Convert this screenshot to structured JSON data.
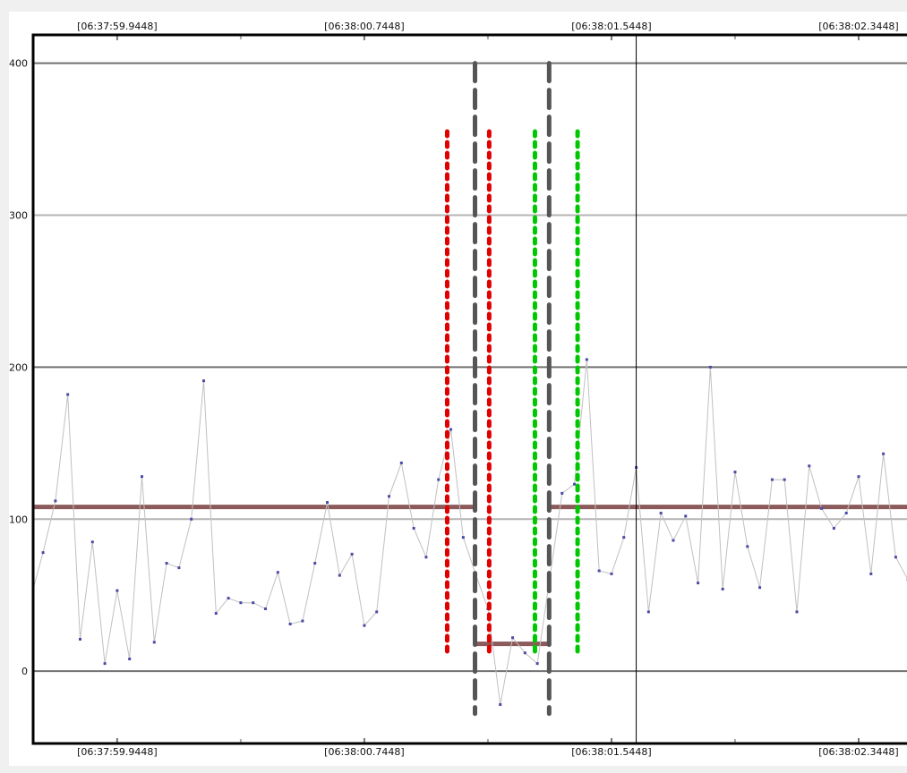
{
  "chart_data": {
    "type": "line",
    "title": "",
    "xlabel": "",
    "ylabel": "",
    "ylim": [
      -47,
      418
    ],
    "xlim": [
      "06:37:59.6756",
      "06:38:02.5013"
    ],
    "yticks": [
      0,
      100,
      200,
      300,
      400
    ],
    "ytick_labels": [
      "0",
      "100",
      "200",
      "300",
      "400"
    ],
    "xticks_major": [
      "06:37:59.9448",
      "06:38:00.7448",
      "06:38:01.5448",
      "06:38:02.3448"
    ],
    "xtick_labels": [
      "[06:37:59.9448]",
      "[06:38:00.7448]",
      "[06:38:01.5448]",
      "[06:38:02.3448]"
    ],
    "xticks_minor": [
      "06:38:00.3448",
      "06:38:01.1448",
      "06:38:01.9448"
    ],
    "grid": true,
    "colors": {
      "series_line": "#c0c0c0",
      "points": "#4a4aa8",
      "level": "#8c5a5a",
      "range_marker": "#555555",
      "red_marker": "#e00000",
      "green_marker": "#00c800",
      "cursor": "#000000",
      "grid_dark": "#707070",
      "grid_light": "#b4b4b4"
    },
    "series": [
      {
        "x": [
          "06:37:59.6648",
          "06:37:59.7048",
          "06:37:59.7448",
          "06:37:59.7848",
          "06:37:59.8248",
          "06:37:59.8648",
          "06:37:59.9048",
          "06:37:59.9448",
          "06:37:59.9848",
          "06:38:00.0248",
          "06:38:00.0648",
          "06:38:00.1048",
          "06:38:00.1448",
          "06:38:00.1848",
          "06:38:00.2248",
          "06:38:00.2648",
          "06:38:00.3048",
          "06:38:00.3448",
          "06:38:00.3848",
          "06:38:00.4248",
          "06:38:00.4648",
          "06:38:00.5048",
          "06:38:00.5448",
          "06:38:00.5848",
          "06:38:00.6248",
          "06:38:00.6648",
          "06:38:00.7048",
          "06:38:00.7448",
          "06:38:00.7848",
          "06:38:00.8248",
          "06:38:00.8648",
          "06:38:00.9048",
          "06:38:00.9448",
          "06:38:00.9848",
          "06:38:01.0248",
          "06:38:01.0648",
          "06:38:01.1048",
          "06:38:01.1448",
          "06:38:01.1848",
          "06:38:01.2248",
          "06:38:01.2648",
          "06:38:01.3048",
          "06:38:01.3448",
          "06:38:01.3848",
          "06:38:01.4248",
          "06:38:01.4648",
          "06:38:01.5048",
          "06:38:01.5448",
          "06:38:01.5848",
          "06:38:01.6248",
          "06:38:01.6648",
          "06:38:01.7048",
          "06:38:01.7448",
          "06:38:01.7848",
          "06:38:01.8248",
          "06:38:01.8648",
          "06:38:01.9048",
          "06:38:01.9448",
          "06:38:01.9848",
          "06:38:02.0248",
          "06:38:02.0648",
          "06:38:02.1048",
          "06:38:02.1448",
          "06:38:02.1848",
          "06:38:02.2248",
          "06:38:02.2648",
          "06:38:02.3048",
          "06:38:02.3448",
          "06:38:02.3848",
          "06:38:02.4248",
          "06:38:02.4648",
          "06:38:02.5048"
        ],
        "y": [
          48,
          78,
          112,
          182,
          21,
          85,
          5,
          53,
          8,
          128,
          19,
          71,
          68,
          100,
          191,
          38,
          48,
          45,
          45,
          41,
          65,
          31,
          33,
          71,
          111,
          63,
          77,
          30,
          39,
          115,
          137,
          94,
          75,
          126,
          159,
          88,
          64,
          41,
          -22,
          22,
          12,
          5,
          61,
          117,
          123,
          205,
          66,
          64,
          88,
          134,
          39,
          104,
          86,
          102,
          58,
          200,
          54,
          131,
          82,
          55,
          126,
          126,
          39,
          135,
          107,
          94,
          104,
          128,
          64,
          143,
          75,
          60
        ]
      }
    ],
    "level_segments": [
      {
        "x0": "06:37:59.6756",
        "x1": "06:38:01.1030",
        "y": 108
      },
      {
        "x0": "06:38:01.1030",
        "x1": "06:38:01.3430",
        "y": 18
      },
      {
        "x0": "06:38:01.3430",
        "x1": "06:38:02.5013",
        "y": 108
      }
    ],
    "vertical_markers": [
      {
        "kind": "range",
        "x": "06:38:01.1030",
        "y0": -28,
        "y1": 400
      },
      {
        "kind": "range",
        "x": "06:38:01.3430",
        "y0": -28,
        "y1": 400
      },
      {
        "kind": "red",
        "x": "06:38:01.0130",
        "y0": 13,
        "y1": 355
      },
      {
        "kind": "red",
        "x": "06:38:01.1490",
        "y0": 13,
        "y1": 355
      },
      {
        "kind": "green",
        "x": "06:38:01.2970",
        "y0": 13,
        "y1": 355
      },
      {
        "kind": "green",
        "x": "06:38:01.4350",
        "y0": 13,
        "y1": 355
      }
    ],
    "cursor": {
      "x": "06:38:01.6248"
    }
  }
}
